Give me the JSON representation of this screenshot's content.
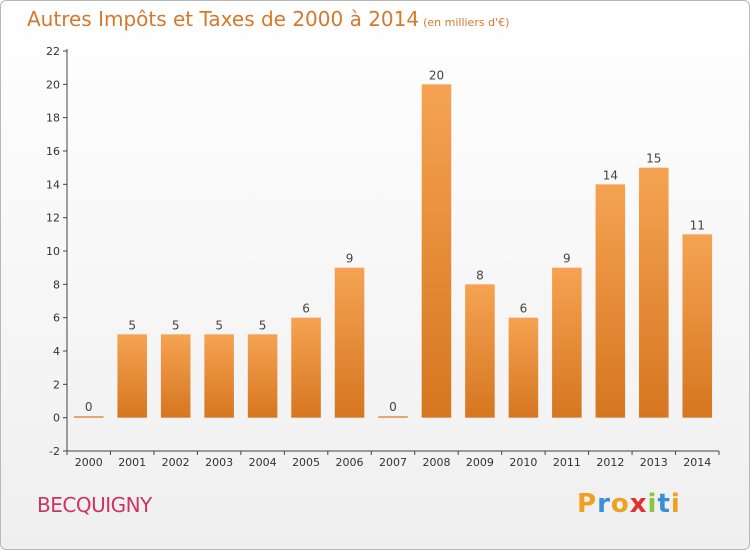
{
  "chart_data": {
    "type": "bar",
    "title": "Autres Impôts et Taxes de 2000 à 2014",
    "unit_note": "(en milliers d'€)",
    "categories": [
      "2000",
      "2001",
      "2002",
      "2003",
      "2004",
      "2005",
      "2006",
      "2007",
      "2008",
      "2009",
      "2010",
      "2011",
      "2012",
      "2013",
      "2014"
    ],
    "values": [
      0,
      5,
      5,
      5,
      5,
      6,
      9,
      0,
      20,
      8,
      6,
      9,
      14,
      15,
      11
    ],
    "ylim": [
      -2,
      22
    ],
    "yticks": [
      -2,
      0,
      2,
      4,
      6,
      8,
      10,
      12,
      14,
      16,
      18,
      20,
      22
    ],
    "grid": false,
    "bar_color_top": "#f5a352",
    "bar_color_bottom": "#d67620"
  },
  "commune": "BECQUIGNY",
  "logo": {
    "letters": [
      "P",
      "r",
      "o",
      "x",
      "i",
      "t",
      "i"
    ],
    "colors": [
      "#f0a020",
      "#3a8fd8",
      "#f0a020",
      "#e03030",
      "#8cc63f",
      "#3a8fd8",
      "#f0a020"
    ]
  }
}
